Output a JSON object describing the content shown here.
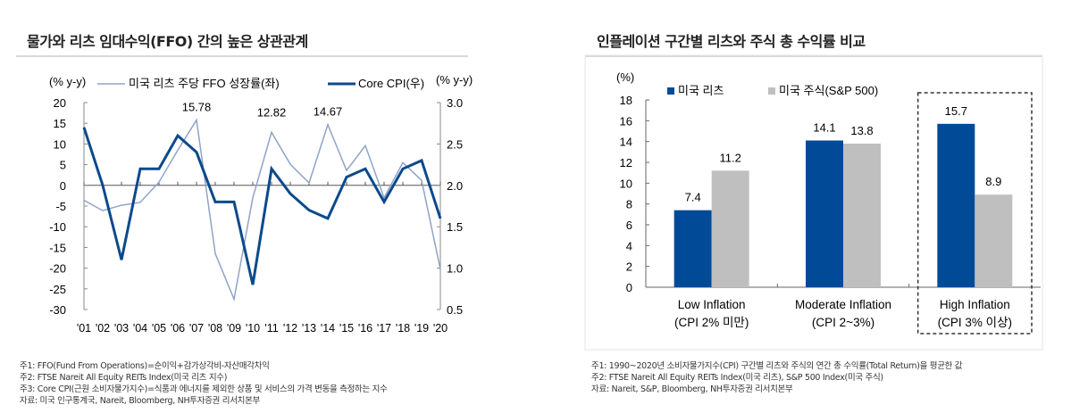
{
  "left": {
    "title": "물가와 리츠 임대수익(FFO) 간의 높은 상관관계",
    "notes": [
      "주1: FFO(Fund From Operations)=순이익+감가상각비-자산매각차익",
      "주2: FTSE Nareit All Equity REITs Index(미국 리츠 지수)",
      "주3: Core CPI(근원 소비자물가지수)=식품과 에너지를 제외한 상품 및 서비스의 가격 변동을 측정하는 지수",
      "자료: 미국 인구통계국, Nareit, Bloomberg, NH투자증권 리서치본부"
    ]
  },
  "right": {
    "title": "인플레이션 구간별 리츠와 주식 총 수익률 비교",
    "notes": [
      "주1: 1990~2020년 소비자물가지수(CPI) 구간별 리츠와 주식의 연간 총 수익률(Total Return)을 평균한 값",
      "주2: FTSE Nareit All Equity REITs Index(미국 리츠), S&P 500 Index(미국 주식)",
      "자료: Nareit, S&P, Bloomberg, NH투자증권 리서치본부"
    ]
  },
  "chart_data": [
    {
      "type": "line",
      "ylabel_left": "(% y-y)",
      "ylabel_right": "(% y-y)",
      "x": [
        "'01",
        "'02",
        "'03",
        "'04",
        "'05",
        "'06",
        "'07",
        "'08",
        "'09",
        "'10",
        "'11",
        "'12",
        "'13",
        "'14",
        "'15",
        "'16",
        "'17",
        "'18",
        "'19",
        "'20"
      ],
      "ylim_left": [
        -30,
        20
      ],
      "yticks_left": [
        20,
        15,
        10,
        5,
        0,
        -5,
        -10,
        -15,
        -20,
        -25,
        -30
      ],
      "ylim_right": [
        0.5,
        3.0
      ],
      "yticks_right": [
        "3.0",
        "2.5",
        "2.0",
        "1.5",
        "1.0",
        "0.5"
      ],
      "series": [
        {
          "name": "미국 리츠 주당 FFO 성장률(좌)",
          "axis": "left",
          "color": "#8fa3c8",
          "values": [
            -3.6,
            -6.1,
            -4.8,
            -4.1,
            0.8,
            8.5,
            15.78,
            -16.5,
            -27.5,
            -3.0,
            12.82,
            5.1,
            0.6,
            14.67,
            3.6,
            9.6,
            -3.0,
            5.5,
            1.2,
            -20.3
          ]
        },
        {
          "name": "Core CPI(우)",
          "axis": "right",
          "color": "#0b4a8b",
          "values": [
            2.7,
            2.0,
            1.1,
            2.2,
            2.2,
            2.6,
            2.4,
            1.8,
            1.8,
            0.8,
            2.2,
            1.9,
            1.7,
            1.6,
            2.1,
            2.2,
            1.8,
            2.2,
            2.3,
            1.6
          ]
        }
      ],
      "annotations": [
        {
          "text": "15.78",
          "x": "'07"
        },
        {
          "text": "12.82",
          "x": "'11"
        },
        {
          "text": "14.67",
          "x": "'14"
        }
      ],
      "legend": "top"
    },
    {
      "type": "bar",
      "ylabel": "(%)",
      "ylim": [
        0,
        18
      ],
      "yticks": [
        0,
        2,
        4,
        6,
        8,
        10,
        12,
        14,
        16,
        18
      ],
      "categories": [
        [
          "Low Inflation",
          "(CPI 2% 미만)"
        ],
        [
          "Moderate Inflation",
          "(CPI 2~3%)"
        ],
        [
          "High Inflation",
          "(CPI 3% 이상)"
        ]
      ],
      "series": [
        {
          "name": "미국 리츠",
          "color": "#004a97",
          "values": [
            7.4,
            14.1,
            15.7
          ]
        },
        {
          "name": "미국 주식(S&P 500)",
          "color": "#bfbfbf",
          "values": [
            11.2,
            13.8,
            8.9
          ]
        }
      ],
      "highlight": "High Inflation",
      "legend": "top-left"
    }
  ]
}
